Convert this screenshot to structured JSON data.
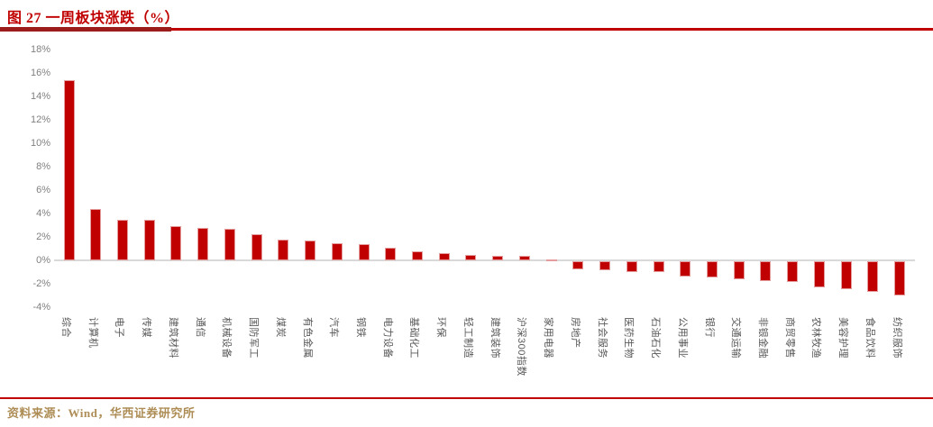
{
  "figure": {
    "title": "图 27 一周板块涨跌（%）",
    "source": "资料来源：Wind，华西证券研究所"
  },
  "colors": {
    "accent": "#C00000",
    "title_rule_dark": "#9C1C1C",
    "bar_fill": "#C00000",
    "bar_border": "#E49C9C",
    "axis_tick_text": "#808080",
    "category_text": "#595959",
    "source_text": "#AD8D55",
    "baseline": "#D9D9D9"
  },
  "chart_data": {
    "type": "bar",
    "title": "图 27 一周板块涨跌（%）",
    "categories": [
      "综合",
      "计算机",
      "电子",
      "传媒",
      "建筑材料",
      "通信",
      "机械设备",
      "国防军工",
      "煤炭",
      "有色金属",
      "汽车",
      "钢铁",
      "电力设备",
      "基础化工",
      "环保",
      "轻工制造",
      "建筑装饰",
      "沪深300指数",
      "家用电器",
      "房地产",
      "社会服务",
      "医药生物",
      "石油石化",
      "公用事业",
      "银行",
      "交通运输",
      "非银金融",
      "商贸零售",
      "农林牧渔",
      "美容护理",
      "食品饮料",
      "纺织服饰"
    ],
    "values": [
      15.4,
      4.4,
      3.5,
      3.5,
      2.9,
      2.8,
      2.7,
      2.2,
      1.8,
      1.7,
      1.5,
      1.4,
      1.1,
      0.8,
      0.6,
      0.5,
      0.4,
      0.4,
      0.1,
      -0.7,
      -0.8,
      -0.9,
      -0.9,
      -1.3,
      -1.4,
      -1.5,
      -1.7,
      -1.8,
      -2.2,
      -2.4,
      -2.6,
      -2.9
    ],
    "xlabel": "",
    "ylabel": "",
    "ylim": [
      -4,
      18
    ],
    "ytick_step": 2,
    "ytick_suffix": "%",
    "yticks": [
      "18%",
      "16%",
      "14%",
      "12%",
      "10%",
      "8%",
      "6%",
      "4%",
      "2%",
      "0%",
      "-2%",
      "-4%"
    ],
    "grid": false,
    "legend": null,
    "bar_color": "#C00000"
  }
}
